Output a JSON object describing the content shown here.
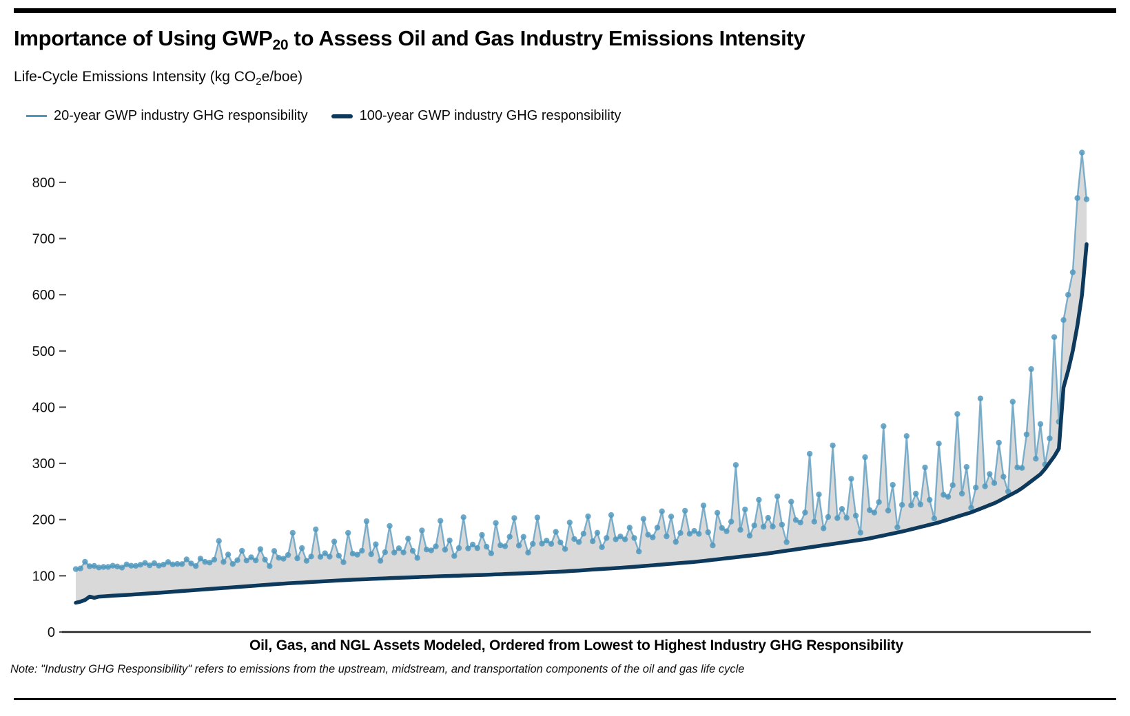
{
  "title": {
    "prefix": "Importance of Using GWP",
    "subscript": "20",
    "suffix": " to Assess Oil and Gas Industry Emissions Intensity"
  },
  "subtitle": {
    "prefix": "Life-Cycle Emissions Intensity (kg CO",
    "subscript": "2",
    "suffix": "e/boe)"
  },
  "note": {
    "text": "Note: \"Industry GHG Responsibility\" refers to emissions from the upstream, midstream, and transportation components of the oil and gas life cycle"
  },
  "colors": {
    "gwp20_blue": "#4d96bc",
    "gwp100_navy": "#0d3a5c",
    "band_gray": "#d9d9d9",
    "axis": "#222222",
    "rule_black": "#000000"
  },
  "chart_data": {
    "type": "line",
    "title": "Importance of Using GWP20 to Assess Oil and Gas Industry Emissions Intensity",
    "ylabel": "Life-Cycle Emissions Intensity (kg CO2e/boe)",
    "xlabel": "Oil, Gas, and NGL Assets Modeled, Ordered from Lowest to Highest Industry GHG Responsibility",
    "grid": false,
    "legend_position": "top-left",
    "y_ticks": [
      0,
      100,
      200,
      300,
      400,
      500,
      600,
      700,
      800
    ],
    "ylim": [
      0,
      860
    ],
    "n_assets": 220,
    "band_fill": "#d9d9d9",
    "series": [
      {
        "name": "20-year GWP industry GHG responsibility",
        "color": "#4d96bc",
        "style": "line+markers",
        "min_value": 112,
        "max_value": 853,
        "envelope_curve": [
          [
            0,
            112
          ],
          [
            0.034,
            116
          ],
          [
            0.095,
            120
          ],
          [
            0.164,
            126
          ],
          [
            0.232,
            132
          ],
          [
            0.3,
            139
          ],
          [
            0.368,
            146
          ],
          [
            0.436,
            153
          ],
          [
            0.504,
            160
          ],
          [
            0.573,
            168
          ],
          [
            0.641,
            178
          ],
          [
            0.709,
            191
          ],
          [
            0.777,
            206
          ],
          [
            0.845,
            230
          ],
          [
            0.893,
            252
          ],
          [
            0.927,
            278
          ],
          [
            0.951,
            308
          ],
          [
            0.967,
            345
          ],
          [
            0.978,
            390
          ],
          [
            0.986,
            440
          ],
          [
            0.992,
            490
          ],
          [
            0.995,
            540
          ],
          [
            0.998,
            620
          ],
          [
            1,
            770
          ]
        ],
        "spike_amplitude_curve": [
          [
            0,
            5
          ],
          [
            0.102,
            10
          ],
          [
            0.15,
            38
          ],
          [
            0.273,
            58
          ],
          [
            0.409,
            70
          ],
          [
            0.545,
            78
          ],
          [
            0.614,
            88
          ],
          [
            0.682,
            112
          ],
          [
            0.75,
            138
          ],
          [
            0.818,
            158
          ],
          [
            0.886,
            188
          ],
          [
            0.927,
            215
          ],
          [
            0.954,
            250
          ],
          [
            0.971,
            265
          ],
          [
            0.989,
            280
          ],
          [
            0.995,
            200
          ],
          [
            1,
            80
          ]
        ],
        "spike_pattern_16": [
          0.008,
          0.362,
          -0.18,
          0.054,
          0.836,
          0.02,
          0.129,
          0.004,
          0.481,
          0.027,
          -0.25,
          0.613,
          0.076,
          0.014,
          0.211,
          1.0
        ],
        "modulation_7": [
          1,
          0.55,
          0.8,
          1.15,
          0.7,
          0.95,
          0.6
        ]
      },
      {
        "name": "100-year GWP industry GHG responsibility",
        "color": "#0d3a5c",
        "style": "line",
        "min_value": 52,
        "max_value": 690,
        "curve": [
          [
            0,
            52
          ],
          [
            0.012,
            58
          ],
          [
            0.023,
            63
          ],
          [
            0.068,
            68
          ],
          [
            0.136,
            77
          ],
          [
            0.204,
            86
          ],
          [
            0.273,
            93
          ],
          [
            0.341,
            98
          ],
          [
            0.409,
            102
          ],
          [
            0.477,
            107
          ],
          [
            0.545,
            115
          ],
          [
            0.614,
            125
          ],
          [
            0.682,
            139
          ],
          [
            0.75,
            157
          ],
          [
            0.784,
            166
          ],
          [
            0.818,
            179
          ],
          [
            0.852,
            194
          ],
          [
            0.886,
            213
          ],
          [
            0.91,
            230
          ],
          [
            0.934,
            253
          ],
          [
            0.956,
            283
          ],
          [
            0.969,
            315
          ],
          [
            0.98,
            350
          ],
          [
            0.986,
            385
          ],
          [
            0.991,
            430
          ],
          [
            0.994,
            475
          ],
          [
            0.997,
            520
          ],
          [
            0.999,
            590
          ],
          [
            1,
            690
          ]
        ]
      }
    ],
    "head_points": {
      "start_index": 0,
      "gwp100": [
        52,
        54,
        57,
        63
      ],
      "gwp20": [
        112,
        113,
        125,
        117
      ]
    },
    "tail_points": {
      "start_index": 214,
      "gwp100": [
        435,
        465,
        500,
        545,
        600,
        690
      ],
      "gwp20": [
        555,
        600,
        640,
        772,
        853,
        770
      ]
    }
  }
}
